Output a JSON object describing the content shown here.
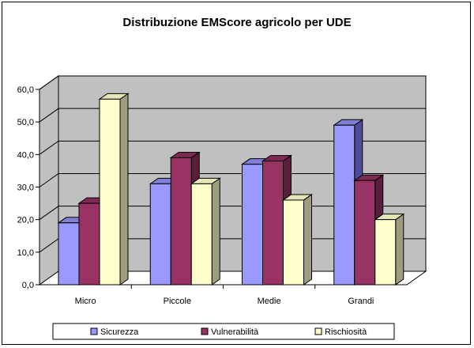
{
  "chart_data": {
    "type": "bar",
    "title": "Distribuzione EMScore agricolo per UDE",
    "categories": [
      "Micro",
      "Piccole",
      "Medie",
      "Grandi"
    ],
    "series": [
      {
        "name": "Sicurezza",
        "values": [
          19,
          31,
          37,
          49
        ]
      },
      {
        "name": "Vulnerabilità",
        "values": [
          25,
          39,
          38,
          32
        ]
      },
      {
        "name": "Rischiosità",
        "values": [
          57,
          31,
          26,
          20
        ]
      }
    ],
    "ylim": [
      0,
      60
    ],
    "yticks": [
      "0,0",
      "10,0",
      "20,0",
      "30,0",
      "40,0",
      "50,0",
      "60,0"
    ],
    "grid": true,
    "legend_position": "bottom",
    "colors": {
      "series_front": [
        "#9999ff",
        "#993366",
        "#ffffcc"
      ],
      "series_top": [
        "#7f7fd8",
        "#7e2952",
        "#e6e6b8"
      ],
      "series_side": [
        "#4d4d9c",
        "#5c1c3c",
        "#9e9e7e"
      ],
      "wall": "#c0c0c0",
      "floor": "#ffffff"
    }
  }
}
